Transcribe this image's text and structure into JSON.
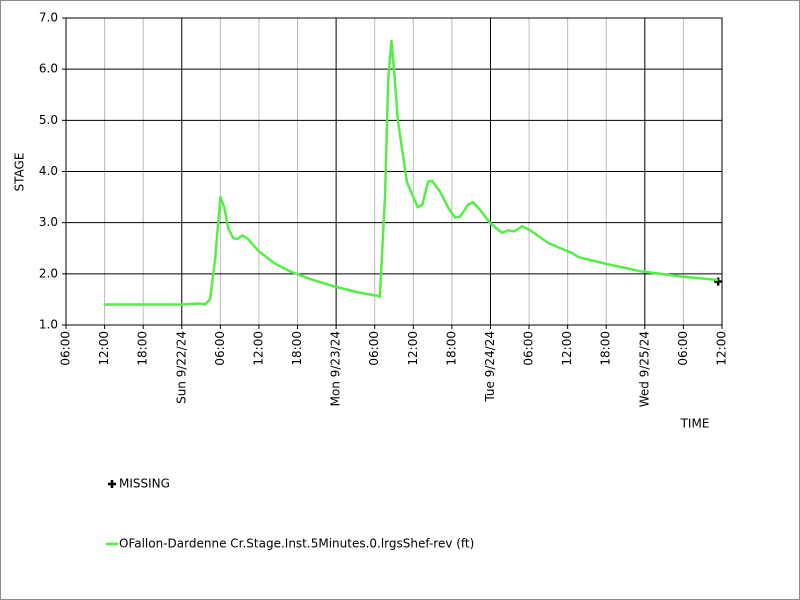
{
  "chart_data": {
    "type": "line",
    "y_label": "STAGE",
    "x_label": "TIME",
    "xlim": [
      0,
      102
    ],
    "ylim": [
      1.0,
      7.0
    ],
    "xticks": [
      {
        "value": 0,
        "label": "06:00"
      },
      {
        "value": 6,
        "label": "12:00"
      },
      {
        "value": 12,
        "label": "18:00"
      },
      {
        "value": 18,
        "label": "Sun 9/22/24"
      },
      {
        "value": 24,
        "label": "06:00"
      },
      {
        "value": 30,
        "label": "12:00"
      },
      {
        "value": 36,
        "label": "18:00"
      },
      {
        "value": 42,
        "label": "Mon 9/23/24"
      },
      {
        "value": 48,
        "label": "06:00"
      },
      {
        "value": 54,
        "label": "12:00"
      },
      {
        "value": 60,
        "label": "18:00"
      },
      {
        "value": 66,
        "label": "Tue 9/24/24"
      },
      {
        "value": 72,
        "label": "06:00"
      },
      {
        "value": 78,
        "label": "12:00"
      },
      {
        "value": 84,
        "label": "18:00"
      },
      {
        "value": 90,
        "label": "Wed 9/25/24"
      },
      {
        "value": 96,
        "label": "06:00"
      },
      {
        "value": 102,
        "label": "12:00"
      }
    ],
    "yticks": [
      {
        "value": 1,
        "label": "1.0"
      },
      {
        "value": 2,
        "label": "2.0"
      },
      {
        "value": 3,
        "label": "3.0"
      },
      {
        "value": 4,
        "label": "4.0"
      },
      {
        "value": 5,
        "label": "5.0"
      },
      {
        "value": 6,
        "label": "6.0"
      },
      {
        "value": 7,
        "label": "7.0"
      }
    ],
    "grid": true,
    "series": [
      {
        "name": "MISSING",
        "color": "#000000",
        "marker": "plus",
        "x": [
          101.4
        ],
        "values": [
          1.85
        ]
      },
      {
        "name": "OFallon-Dardenne Cr.Stage.Inst.5Minutes.0.lrgsShef-rev (ft)",
        "color": "#55ee44",
        "x": [
          6,
          18,
          20.8,
          21.6,
          22.4,
          23.2,
          24,
          24.6,
          25.2,
          26,
          26.7,
          27.4,
          28.3,
          29.9,
          32.5,
          34.8,
          37.9,
          41.8,
          45.7,
          48.5,
          48.8,
          49.6,
          50.1,
          50.6,
          51.0,
          51.6,
          52.3,
          53,
          54,
          54.7,
          55.4,
          56.3,
          56.9,
          58.2,
          59.4,
          60.5,
          61.3,
          62.5,
          63.3,
          64.4,
          65.9,
          67.8,
          68.7,
          69.7,
          70.9,
          72.2,
          75,
          78.8,
          79.6,
          83.8,
          89.3,
          95.5,
          101.4
        ],
        "values": [
          1.4,
          1.4,
          1.42,
          1.4,
          1.5,
          2.3,
          3.5,
          3.3,
          2.9,
          2.7,
          2.68,
          2.75,
          2.68,
          2.45,
          2.2,
          2.05,
          1.9,
          1.75,
          1.63,
          1.57,
          1.55,
          3.5,
          5.8,
          6.55,
          6.0,
          5.0,
          4.4,
          3.8,
          3.5,
          3.3,
          3.35,
          3.8,
          3.82,
          3.6,
          3.3,
          3.1,
          3.12,
          3.35,
          3.4,
          3.25,
          3.0,
          2.8,
          2.85,
          2.83,
          2.93,
          2.85,
          2.6,
          2.4,
          2.33,
          2.2,
          2.05,
          1.95,
          1.88
        ]
      }
    ]
  }
}
